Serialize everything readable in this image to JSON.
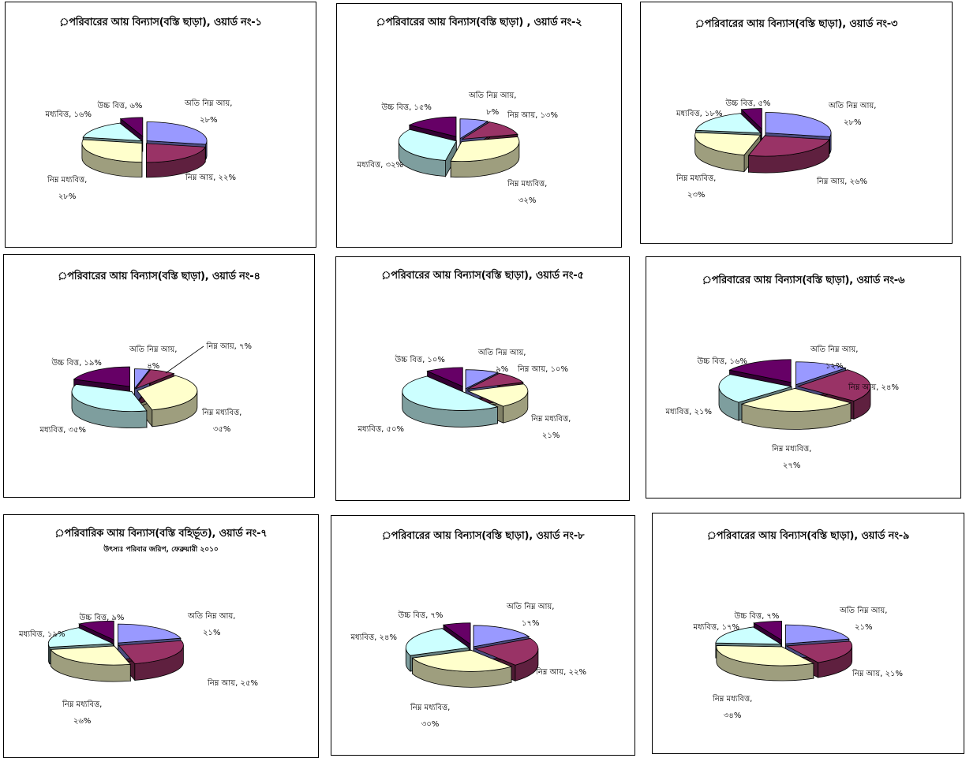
{
  "colors": {
    "atiNimno": "#9999ff",
    "nimno": "#993366",
    "nimnoModdhobitto": "#ffffcc",
    "moddhobitto": "#ccffff",
    "ucchoBitto": "#660066"
  },
  "chart_data": [
    {
      "type": "pie",
      "title": "়পরিবারের আয় বিন্যাস(বস্তি ছাড়া), ওয়ার্ড নং-১",
      "subtitle": "",
      "slices": [
        {
          "name": "অতি নিম্ন  আয়",
          "value": 28,
          "text": [
            "অতি নিম্ন  আয়,",
            "২৮%"
          ]
        },
        {
          "name": "নিম্ন  আয়",
          "value": 22,
          "text": [
            "নিম্ন  আয়, ২২%"
          ]
        },
        {
          "name": "নিম্ন  মধ্যবিত্ত",
          "value": 28,
          "text": [
            "নিম্ন  মধ্যবিত্ত,",
            "২৮%"
          ]
        },
        {
          "name": "মধ্যবিত্ত",
          "value": 16,
          "text": [
            "মধ্যবিত্ত, ১৬%"
          ]
        },
        {
          "name": "উচ্চ বিত্ত",
          "value": 6,
          "text": [
            "উচ্চ বিত্ত, ৬%"
          ]
        }
      ]
    },
    {
      "type": "pie",
      "title": "়পরিবারের আয় বিন্যাস(বস্তি ছাড়া) , ওয়ার্ড নং-২",
      "subtitle": "",
      "slices": [
        {
          "name": "অতি নিম্ন আয়",
          "value": 8,
          "text": [
            "অতি নিম্ন আয়,",
            "৮%"
          ]
        },
        {
          "name": "নিম্ন আয়",
          "value": 13,
          "text": [
            "নিম্ন আয়, ১৩%"
          ]
        },
        {
          "name": "নিম্ন মধ্যবিত্ত",
          "value": 32,
          "text": [
            "নিম্ন মধ্যবিত্ত,",
            "৩২%"
          ]
        },
        {
          "name": "মধ্যবিত্ত",
          "value": 32,
          "text": [
            "মধ্যবিত্ত, ৩২%"
          ]
        },
        {
          "name": "উচ্চ বিত্ত",
          "value": 15,
          "text": [
            "উচ্চ বিত্ত, ১৫%"
          ]
        }
      ]
    },
    {
      "type": "pie",
      "title": "়পরিবারের আয় বিন্যাস(বস্তি ছাড়া), ওয়ার্ড নং-৩",
      "subtitle": "",
      "slices": [
        {
          "name": "অতি নিম্ন  আয়",
          "value": 28,
          "text": [
            "অতি নিম্ন  আয়,",
            "২৮%"
          ]
        },
        {
          "name": "নিম্ন  আয়",
          "value": 26,
          "text": [
            "নিম্ন  আয়, ২৬%"
          ]
        },
        {
          "name": "নিম্ন  মধ্যবিত্ত",
          "value": 23,
          "text": [
            "নিম্ন  মধ্যবিত্ত,",
            "২৩%"
          ]
        },
        {
          "name": "মধ্যবিত্ত",
          "value": 18,
          "text": [
            "মধ্যবিত্ত, ১৮%"
          ]
        },
        {
          "name": "উচ্চ বিত্ত",
          "value": 5,
          "text": [
            "উচ্চ বিত্ত, ৫%"
          ]
        }
      ]
    },
    {
      "type": "pie",
      "title": "়পরিবারের আয় বিন্যাস(বস্তি ছাড়া), ওয়ার্ড নং-৪",
      "subtitle": "",
      "slices": [
        {
          "name": "অতি নিম্ন  আয়",
          "value": 4,
          "text": [
            "অতি নিম্ন  আয়,",
            "৪%"
          ]
        },
        {
          "name": "নিম্ন  আয়",
          "value": 7,
          "text": [
            "নিম্ন  আয়, ৭%"
          ]
        },
        {
          "name": "নিম্ন  মধ্যবিত্ত",
          "value": 35,
          "text": [
            "নিম্ন  মধ্যবিত্ত,",
            "৩৫%"
          ]
        },
        {
          "name": "মধ্যবিত্ত",
          "value": 35,
          "text": [
            "মধ্যবিত্ত, ৩৫%"
          ]
        },
        {
          "name": "উচ্চ বিত্ত",
          "value": 19,
          "text": [
            "উচ্চ বিত্ত, ১৯%"
          ]
        }
      ]
    },
    {
      "type": "pie",
      "title": "়পরিবারের আয় বিন্যাস(বস্তি ছাড়া), ওয়ার্ড নং-৫",
      "subtitle": "",
      "slices": [
        {
          "name": "অতি নিম্ন  আয়",
          "value": 9,
          "text": [
            "অতি নিম্ন  আয়,",
            "৯%"
          ]
        },
        {
          "name": "নিম্ন  আয়",
          "value": 10,
          "text": [
            "নিম্ন  আয়, ১০%"
          ]
        },
        {
          "name": "নিম্ন  মধ্যবিত্ত",
          "value": 21,
          "text": [
            "নিম্ন  মধ্যবিত্ত,",
            "২১%"
          ]
        },
        {
          "name": "মধ্যবিত্ত",
          "value": 50,
          "text": [
            "মধ্যবিত্ত, ৫০%"
          ]
        },
        {
          "name": "উচ্চ বিত্ত",
          "value": 10,
          "text": [
            "উচ্চ বিত্ত, ১০%"
          ]
        }
      ]
    },
    {
      "type": "pie",
      "title": "়পরিবারের আয় বিন্যাস(বস্তি ছাড়া), ওয়ার্ড নং-৬",
      "subtitle": "",
      "slices": [
        {
          "name": "অতি নিম্ন  আয়",
          "value": 12,
          "text": [
            "অতি নিম্ন  আয়,",
            "১২%"
          ]
        },
        {
          "name": "নিম্ন  আয়",
          "value": 24,
          "text": [
            "নিম্ন  আয়, ২৪%"
          ]
        },
        {
          "name": "নিম্ন  মধ্যবিত্ত",
          "value": 27,
          "text": [
            "নিম্ন  মধ্যবিত্ত,",
            "২৭%"
          ]
        },
        {
          "name": "মধ্যবিত্ত",
          "value": 21,
          "text": [
            "মধ্যবিত্ত, ২১%"
          ]
        },
        {
          "name": "উচ্চ বিত্ত",
          "value": 16,
          "text": [
            "উচ্চ বিত্ত, ১৬%"
          ]
        }
      ]
    },
    {
      "type": "pie",
      "title": "়পরিবারিক আয় বিন্যাস(বস্তি বহির্ভূত), ওয়ার্ড নং-৭",
      "subtitle": "উৎস্যঃ পরিবার জরিপ, ফেব্রুয়ারী ২০১০",
      "slices": [
        {
          "name": "অতি নিম্ন  আয়",
          "value": 21,
          "text": [
            "অতি নিম্ন  আয়,",
            "২১%"
          ]
        },
        {
          "name": "নিম্ন  আয়",
          "value": 25,
          "text": [
            "নিম্ন  আয়, ২৫%"
          ]
        },
        {
          "name": "নিম্ন  মধ্যবিত্ত",
          "value": 26,
          "text": [
            "নিম্ন  মধ্যবিত্ত,",
            "২৬%"
          ]
        },
        {
          "name": "মধ্যবিত্ত",
          "value": 19,
          "text": [
            "মধ্যবিত্ত, ১৯%"
          ]
        },
        {
          "name": "উচ্চ বিত্ত",
          "value": 9,
          "text": [
            "উচ্চ বিত্ত, ৯%"
          ]
        }
      ]
    },
    {
      "type": "pie",
      "title": "়পরিবারের আয় বিন্যাস(বস্তি ছাড়া), ওয়ার্ড নং-৮",
      "subtitle": "",
      "slices": [
        {
          "name": "অতি নিম্ন  আয়",
          "value": 17,
          "text": [
            "অতি নিম্ন  আয়,",
            "১৭%"
          ]
        },
        {
          "name": "নিম্ন  আয়",
          "value": 22,
          "text": [
            "নিম্ন  আয়, ২২%"
          ]
        },
        {
          "name": "নিম্ন  মধ্যবিত্ত",
          "value": 30,
          "text": [
            "নিম্ন  মধ্যবিত্ত,",
            "৩০%"
          ]
        },
        {
          "name": "মধ্যবিত্ত",
          "value": 24,
          "text": [
            "মধ্যবিত্ত, ২৪%"
          ]
        },
        {
          "name": "উচ্চ বিত্ত",
          "value": 7,
          "text": [
            "উচ্চ বিত্ত, ৭%"
          ]
        }
      ]
    },
    {
      "type": "pie",
      "title": "়পরিবারের আয় বিন্যাস(বস্তি ছাড়া), ওয়ার্ড নং-৯",
      "subtitle": "",
      "slices": [
        {
          "name": "অতি নিম্ন  আয়",
          "value": 21,
          "text": [
            "অতি নিম্ন  আয়,",
            "২১%"
          ]
        },
        {
          "name": "নিম্ন  আয়",
          "value": 21,
          "text": [
            "নিম্ন  আয়, ২১%"
          ]
        },
        {
          "name": "নিম্ন  মধ্যবিত্ত",
          "value": 34,
          "text": [
            "নিম্ন  মধ্যবিত্ত,",
            "৩৪%"
          ]
        },
        {
          "name": "মধ্যবিত্ত",
          "value": 17,
          "text": [
            "মধ্যবিত্ত, ১৭%"
          ]
        },
        {
          "name": "উচ্চ বিত্ত",
          "value": 7,
          "text": [
            "উচ্চ বিত্ত, ৭%"
          ]
        }
      ]
    }
  ]
}
